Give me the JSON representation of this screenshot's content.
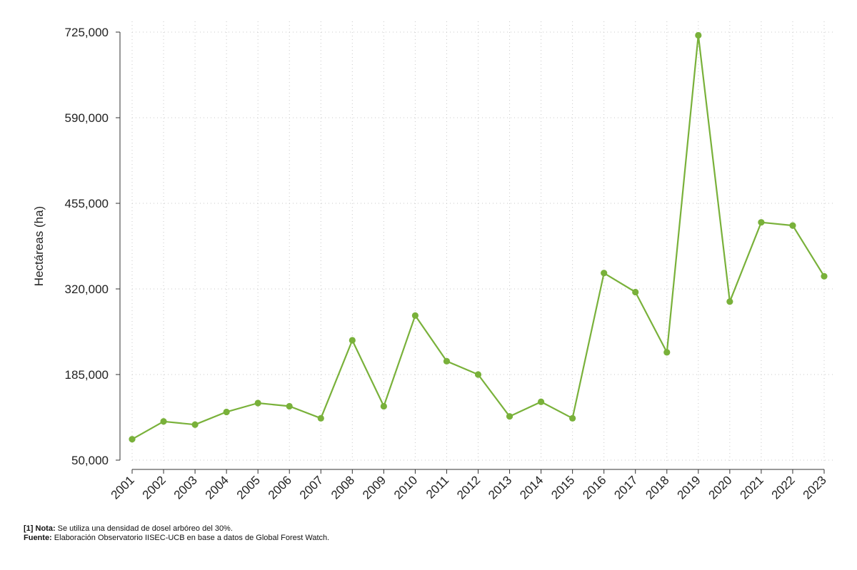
{
  "chart_data": {
    "type": "line",
    "x": [
      "2001",
      "2002",
      "2003",
      "2004",
      "2005",
      "2006",
      "2007",
      "2008",
      "2009",
      "2010",
      "2011",
      "2012",
      "2013",
      "2014",
      "2015",
      "2016",
      "2017",
      "2018",
      "2019",
      "2020",
      "2021",
      "2022",
      "2023"
    ],
    "series": [
      {
        "values": [
          83000,
          111000,
          106000,
          126000,
          140000,
          135000,
          116000,
          239000,
          135000,
          278000,
          206000,
          185000,
          119000,
          142000,
          116000,
          345000,
          315000,
          220000,
          720000,
          300000,
          425000,
          420000,
          340000
        ]
      }
    ],
    "ylabel": "Hectáreas (ha)",
    "yticks": [
      "50,000",
      "185,000",
      "320,000",
      "455,000",
      "590,000",
      "725,000"
    ],
    "ytick_values": [
      50000,
      185000,
      320000,
      455000,
      590000,
      725000
    ],
    "ylim": [
      50000,
      725000
    ],
    "grid": true,
    "line_color": "#79b13a"
  },
  "footnotes": {
    "note_label": "[1] Nota:",
    "note_text": " Se utiliza una densidad de dosel arbóreo del 30%.",
    "source_label": "Fuente:",
    "source_text": " Elaboración Observatorio IISEC-UCB en base a datos de Global Forest Watch."
  }
}
